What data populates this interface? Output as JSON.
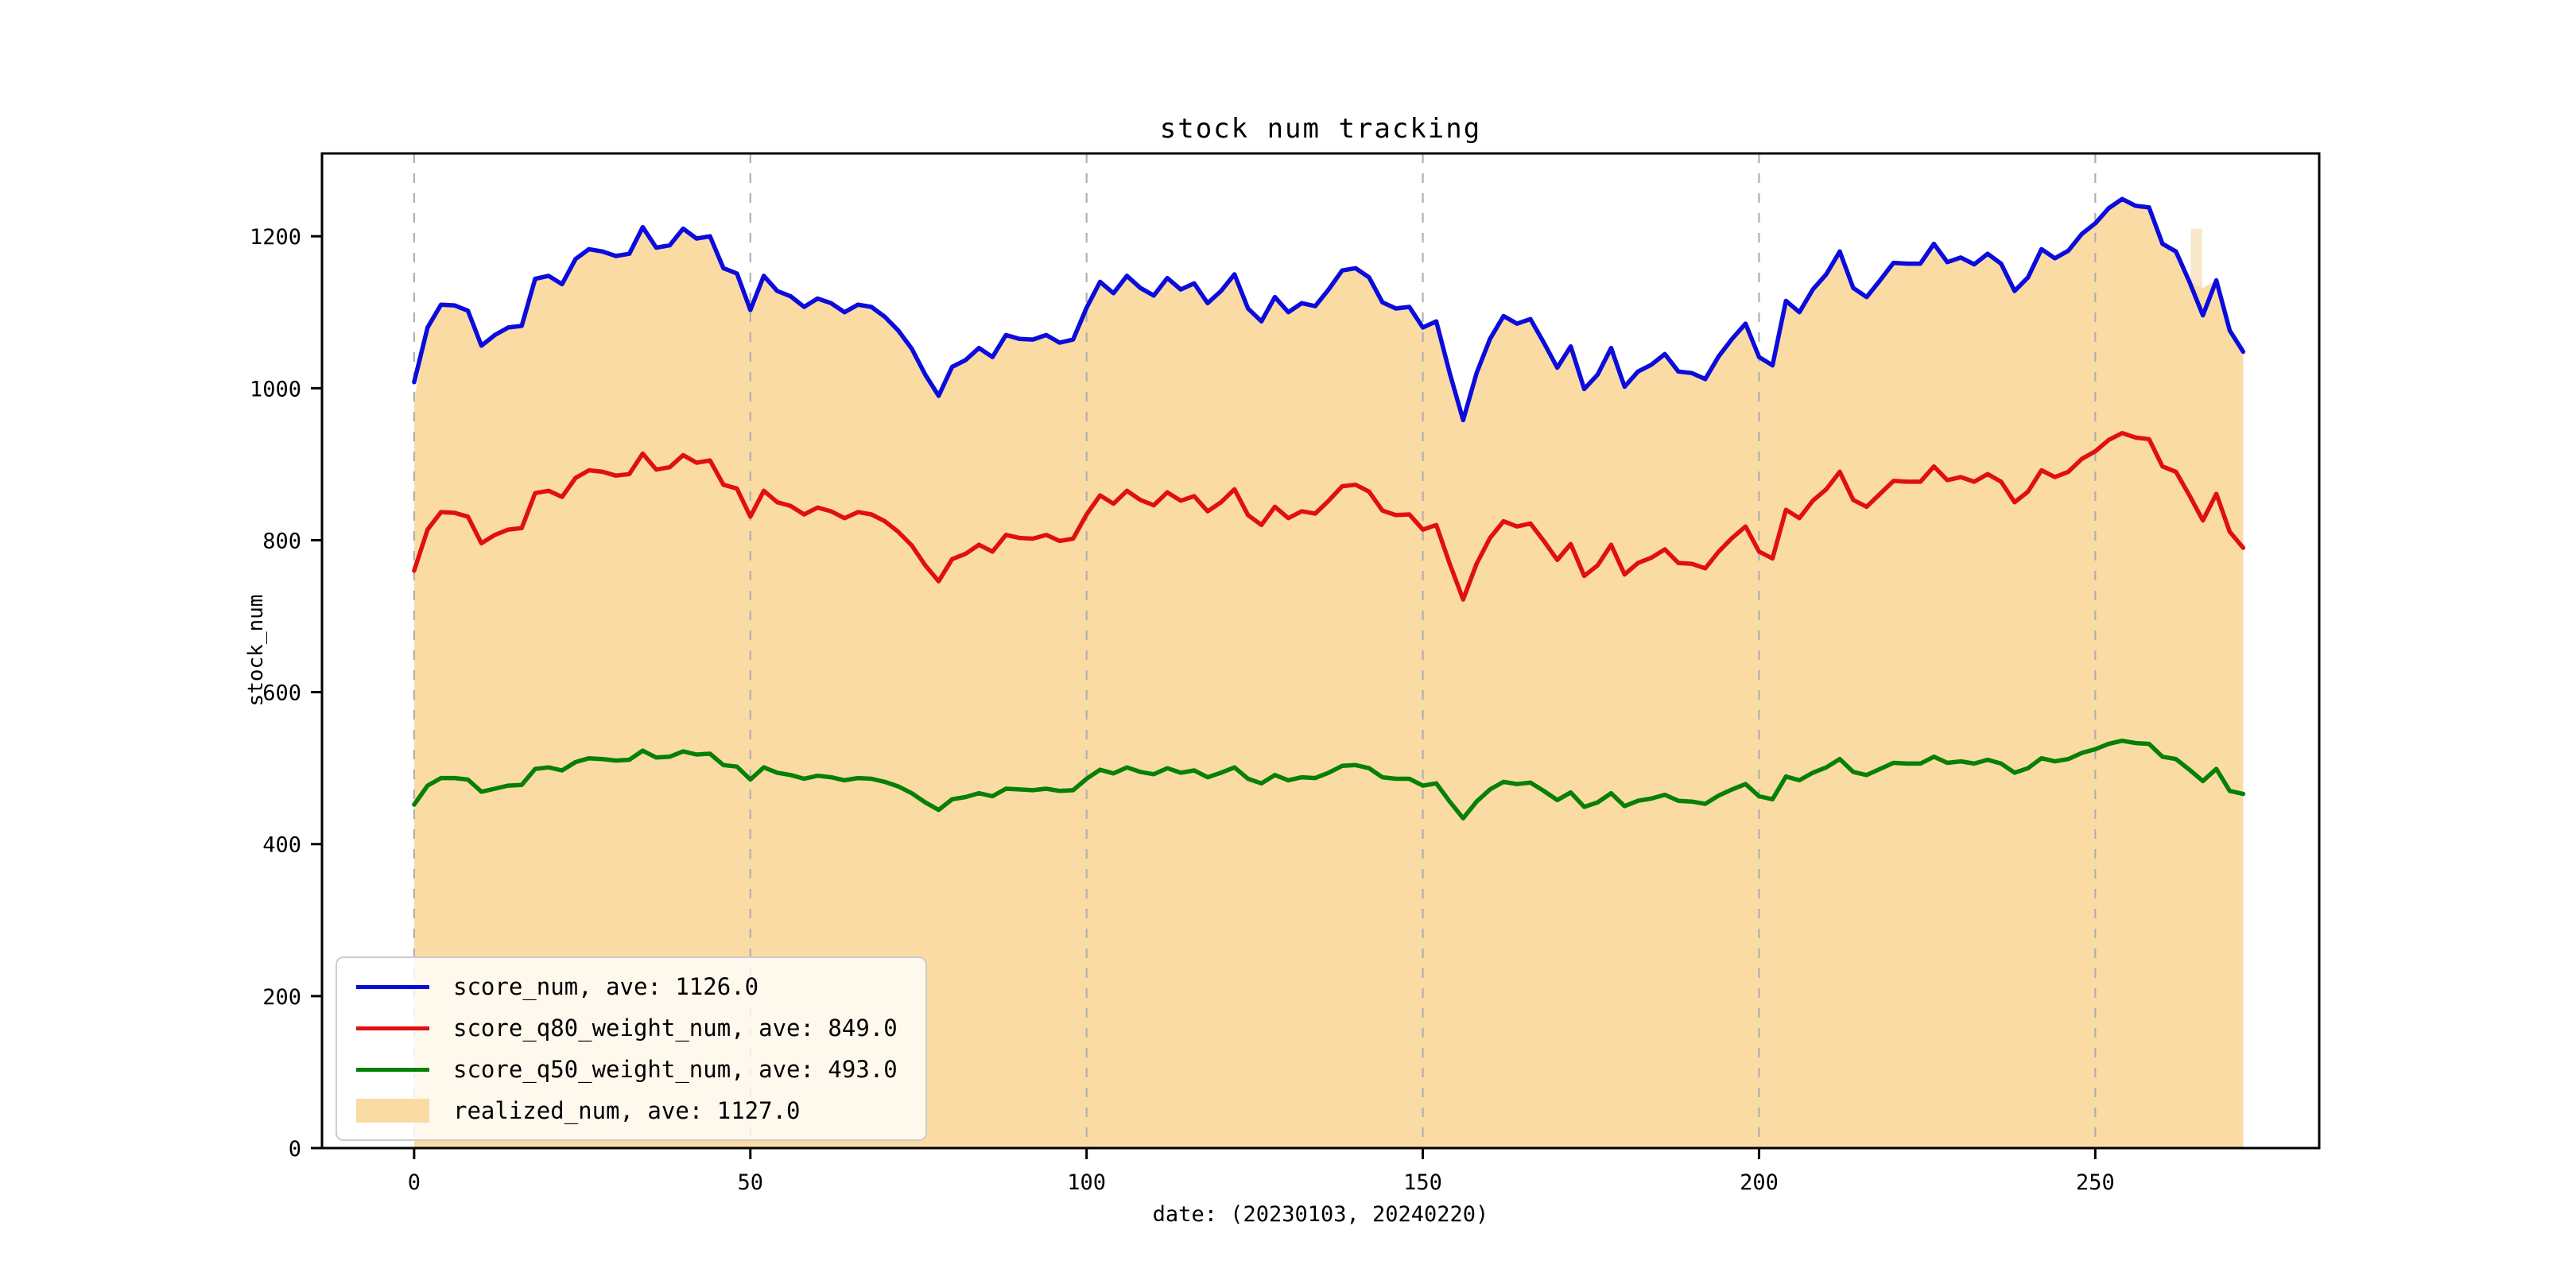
{
  "chart_data": {
    "type": "line",
    "title": "stock num tracking",
    "xlabel": "date: (20230103, 20240220)",
    "ylabel": "stock_num",
    "xlim": [
      -13.7,
      283.3
    ],
    "ylim": [
      0,
      1309
    ],
    "xticks": [
      0,
      50,
      100,
      150,
      200,
      250
    ],
    "yticks": [
      0,
      200,
      400,
      600,
      800,
      1000,
      1200
    ],
    "grid": {
      "axis": "x",
      "style": "dashed",
      "color": "#b0b0b0"
    },
    "legend_position": "lower left",
    "axis_color": "#000000",
    "x_start": 0,
    "x_step": 2,
    "series": [
      {
        "name": "score_num, ave: 1126.0",
        "type": "line",
        "color": "#0b0bdd",
        "values": [
          1008,
          1080,
          1110,
          1109,
          1102,
          1056,
          1070,
          1080,
          1082,
          1144,
          1148,
          1137,
          1170,
          1183,
          1180,
          1174,
          1177,
          1212,
          1185,
          1188,
          1210,
          1197,
          1200,
          1158,
          1151,
          1103,
          1148,
          1128,
          1121,
          1107,
          1118,
          1112,
          1100,
          1110,
          1107,
          1094,
          1076,
          1052,
          1018,
          990,
          1028,
          1037,
          1053,
          1041,
          1070,
          1065,
          1064,
          1070,
          1060,
          1064,
          1106,
          1140,
          1125,
          1148,
          1132,
          1122,
          1145,
          1130,
          1138,
          1112,
          1128,
          1150,
          1105,
          1088,
          1120,
          1100,
          1112,
          1108,
          1130,
          1155,
          1158,
          1146,
          1113,
          1105,
          1107,
          1080,
          1088,
          1020,
          958,
          1020,
          1065,
          1095,
          1085,
          1091,
          1060,
          1027,
          1055,
          999,
          1018,
          1053,
          1002,
          1022,
          1031,
          1045,
          1022,
          1020,
          1012,
          1042,
          1065,
          1085,
          1041,
          1030,
          1115,
          1100,
          1130,
          1150,
          1180,
          1132,
          1120,
          1142,
          1165,
          1164,
          1164,
          1190,
          1166,
          1172,
          1163,
          1177,
          1164,
          1128,
          1146,
          1183,
          1171,
          1181,
          1203,
          1217,
          1237,
          1249,
          1240,
          1238,
          1190,
          1180,
          1140,
          1096,
          1142,
          1076,
          1048
        ]
      },
      {
        "name": "score_q80_weight_num, ave: 849.0",
        "type": "line",
        "color": "#e01010",
        "values": [
          760,
          814,
          837,
          836,
          831,
          796,
          807,
          814,
          816,
          862,
          865,
          857,
          882,
          892,
          890,
          885,
          887,
          914,
          893,
          896,
          912,
          902,
          905,
          873,
          868,
          831,
          865,
          850,
          845,
          834,
          843,
          838,
          829,
          837,
          834,
          825,
          811,
          793,
          767,
          746,
          775,
          782,
          794,
          785,
          807,
          803,
          802,
          807,
          799,
          802,
          834,
          859,
          848,
          865,
          853,
          846,
          863,
          852,
          858,
          838,
          850,
          867,
          833,
          820,
          844,
          829,
          838,
          835,
          852,
          871,
          873,
          864,
          839,
          833,
          834,
          814,
          820,
          769,
          722,
          769,
          803,
          825,
          818,
          822,
          799,
          774,
          795,
          753,
          767,
          794,
          755,
          770,
          777,
          788,
          770,
          769,
          763,
          785,
          803,
          818,
          785,
          776,
          840,
          829,
          852,
          867,
          890,
          853,
          844,
          861,
          878,
          877,
          877,
          897,
          879,
          883,
          877,
          887,
          877,
          850,
          864,
          892,
          883,
          890,
          907,
          917,
          932,
          941,
          935,
          933,
          897,
          890,
          859,
          826,
          861,
          811,
          790
        ]
      },
      {
        "name": "score_q50_weight_num, ave: 493.0",
        "type": "line",
        "color": "#068006",
        "values": [
          452,
          477,
          487,
          487,
          485,
          469,
          473,
          477,
          478,
          499,
          501,
          497,
          508,
          513,
          512,
          510,
          511,
          523,
          514,
          515,
          522,
          518,
          519,
          504,
          502,
          485,
          501,
          494,
          491,
          486,
          490,
          488,
          484,
          487,
          486,
          482,
          476,
          467,
          455,
          445,
          459,
          462,
          467,
          463,
          473,
          472,
          471,
          473,
          470,
          471,
          486,
          498,
          493,
          501,
          495,
          492,
          500,
          494,
          497,
          488,
          494,
          501,
          486,
          480,
          491,
          484,
          488,
          487,
          494,
          503,
          504,
          500,
          488,
          486,
          486,
          477,
          480,
          456,
          434,
          456,
          472,
          482,
          479,
          481,
          470,
          458,
          468,
          449,
          455,
          467,
          450,
          457,
          460,
          465,
          457,
          456,
          453,
          464,
          472,
          479,
          463,
          459,
          489,
          484,
          494,
          501,
          512,
          495,
          491,
          499,
          507,
          506,
          506,
          515,
          507,
          509,
          506,
          511,
          506,
          494,
          500,
          513,
          509,
          512,
          520,
          525,
          532,
          536,
          533,
          532,
          515,
          512,
          498,
          483,
          499,
          470,
          466
        ]
      },
      {
        "name": "realized_num, ave: 1127.0",
        "type": "area",
        "color": "#fbdba4",
        "highlight_bar": {
          "x0": 264.2,
          "x1": 265.9,
          "top": 1210,
          "color": "#f8e7c9"
        },
        "values": [
          985,
          1080,
          1110,
          1109,
          1102,
          1056,
          1070,
          1080,
          1082,
          1144,
          1148,
          1137,
          1170,
          1183,
          1180,
          1174,
          1177,
          1212,
          1185,
          1188,
          1210,
          1197,
          1200,
          1158,
          1151,
          1103,
          1148,
          1128,
          1121,
          1107,
          1118,
          1112,
          1100,
          1110,
          1107,
          1094,
          1076,
          1052,
          1018,
          990,
          1028,
          1037,
          1053,
          1041,
          1070,
          1065,
          1064,
          1070,
          1060,
          1064,
          1106,
          1140,
          1125,
          1148,
          1132,
          1122,
          1145,
          1130,
          1138,
          1112,
          1128,
          1150,
          1105,
          1088,
          1120,
          1100,
          1112,
          1108,
          1130,
          1155,
          1158,
          1146,
          1113,
          1105,
          1107,
          1080,
          1088,
          1020,
          958,
          1020,
          1065,
          1095,
          1085,
          1091,
          1060,
          1027,
          1055,
          999,
          1018,
          1053,
          1002,
          1022,
          1031,
          1045,
          1022,
          1020,
          1012,
          1042,
          1065,
          1085,
          1041,
          1030,
          1115,
          1100,
          1130,
          1150,
          1180,
          1132,
          1120,
          1142,
          1165,
          1164,
          1164,
          1190,
          1166,
          1172,
          1163,
          1177,
          1164,
          1128,
          1146,
          1183,
          1171,
          1181,
          1203,
          1217,
          1237,
          1249,
          1240,
          1238,
          1190,
          1180,
          1140,
          1132,
          1142,
          1076,
          1048
        ]
      }
    ]
  }
}
